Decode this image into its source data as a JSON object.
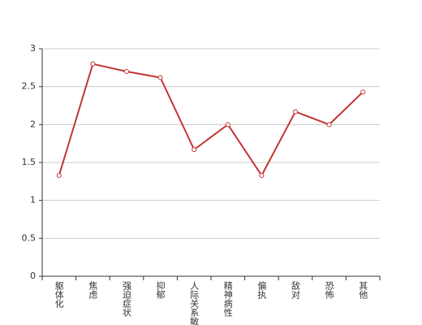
{
  "chart_data": {
    "type": "line",
    "categories": [
      "躯体化",
      "焦虑",
      "强迫症状",
      "抑郁",
      "人际关系敏感",
      "精神病性",
      "偏执",
      "敌对",
      "恐怖",
      "其他"
    ],
    "values": [
      1.33,
      2.8,
      2.7,
      2.62,
      1.67,
      2.0,
      1.33,
      2.17,
      2.0,
      2.43
    ],
    "color": "#c23531",
    "ylim": [
      0,
      3
    ],
    "yticks": [
      0,
      0.5,
      1,
      1.5,
      2,
      2.5,
      3
    ],
    "grid": true
  }
}
